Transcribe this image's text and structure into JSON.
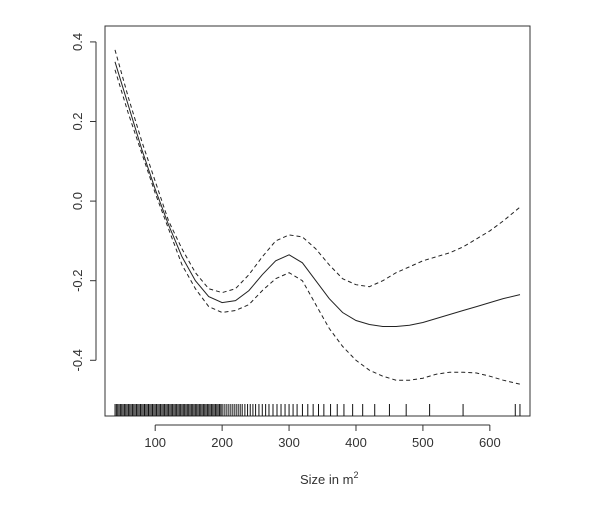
{
  "chart_data": {
    "type": "line",
    "xlabel": "Size in m",
    "xlabel_superscript": "2",
    "ylabel": "",
    "xlim": [
      25,
      660
    ],
    "ylim": [
      -0.54,
      0.44
    ],
    "x_ticks": [
      100,
      200,
      300,
      400,
      500,
      600
    ],
    "x_tick_labels": [
      "100",
      "200",
      "300",
      "400",
      "500",
      "600"
    ],
    "y_ticks": [
      -0.4,
      -0.2,
      0.0,
      0.2,
      0.4
    ],
    "y_tick_labels": [
      "-0.4",
      "-0.2",
      "0.0",
      "0.2",
      "0.4"
    ],
    "grid": false,
    "legend": "none",
    "series": [
      {
        "style": "solid",
        "x": [
          40,
          60,
          80,
          100,
          120,
          140,
          160,
          180,
          200,
          220,
          240,
          260,
          280,
          300,
          320,
          340,
          360,
          380,
          400,
          420,
          440,
          460,
          480,
          500,
          520,
          540,
          560,
          580,
          600,
          620,
          645
        ],
        "y": [
          0.35,
          0.24,
          0.13,
          0.03,
          -0.06,
          -0.14,
          -0.2,
          -0.24,
          -0.255,
          -0.25,
          -0.225,
          -0.185,
          -0.15,
          -0.135,
          -0.155,
          -0.2,
          -0.245,
          -0.28,
          -0.3,
          -0.31,
          -0.315,
          -0.315,
          -0.312,
          -0.305,
          -0.295,
          -0.285,
          -0.275,
          -0.265,
          -0.255,
          -0.245,
          -0.235
        ]
      },
      {
        "style": "dashed",
        "x": [
          40,
          60,
          80,
          100,
          120,
          140,
          160,
          180,
          200,
          220,
          240,
          260,
          280,
          300,
          320,
          340,
          360,
          380,
          400,
          420,
          440,
          460,
          480,
          500,
          520,
          540,
          560,
          580,
          600,
          620,
          645
        ],
        "y": [
          0.38,
          0.26,
          0.15,
          0.05,
          -0.05,
          -0.12,
          -0.18,
          -0.22,
          -0.23,
          -0.22,
          -0.185,
          -0.14,
          -0.1,
          -0.085,
          -0.09,
          -0.12,
          -0.16,
          -0.195,
          -0.21,
          -0.215,
          -0.2,
          -0.18,
          -0.165,
          -0.15,
          -0.14,
          -0.13,
          -0.115,
          -0.095,
          -0.075,
          -0.05,
          -0.015
        ]
      },
      {
        "style": "dashed",
        "x": [
          40,
          60,
          80,
          100,
          120,
          140,
          160,
          180,
          200,
          220,
          240,
          260,
          280,
          300,
          320,
          340,
          360,
          380,
          400,
          420,
          440,
          460,
          480,
          500,
          520,
          540,
          560,
          580,
          600,
          620,
          645
        ],
        "y": [
          0.33,
          0.22,
          0.12,
          0.02,
          -0.07,
          -0.16,
          -0.22,
          -0.265,
          -0.28,
          -0.275,
          -0.26,
          -0.225,
          -0.195,
          -0.18,
          -0.2,
          -0.26,
          -0.32,
          -0.365,
          -0.4,
          -0.425,
          -0.44,
          -0.45,
          -0.45,
          -0.445,
          -0.435,
          -0.43,
          -0.43,
          -0.432,
          -0.44,
          -0.45,
          -0.46
        ]
      }
    ],
    "rug_x": [
      40,
      42,
      44,
      46,
      48,
      50,
      52,
      54,
      56,
      58,
      60,
      62,
      64,
      66,
      68,
      70,
      72,
      74,
      76,
      78,
      80,
      82,
      84,
      86,
      88,
      90,
      92,
      94,
      96,
      98,
      100,
      102,
      104,
      106,
      108,
      110,
      112,
      114,
      116,
      118,
      120,
      122,
      124,
      126,
      128,
      130,
      132,
      134,
      136,
      138,
      140,
      142,
      144,
      146,
      148,
      150,
      152,
      154,
      156,
      158,
      160,
      162,
      164,
      166,
      168,
      170,
      172,
      174,
      176,
      178,
      180,
      182,
      184,
      186,
      188,
      190,
      192,
      194,
      196,
      198,
      200,
      203,
      206,
      209,
      212,
      215,
      218,
      221,
      224,
      227,
      230,
      234,
      238,
      242,
      246,
      250,
      255,
      260,
      265,
      270,
      276,
      282,
      288,
      294,
      300,
      306,
      312,
      320,
      328,
      336,
      344,
      352,
      362,
      372,
      382,
      395,
      410,
      428,
      450,
      475,
      510,
      560,
      638,
      645
    ]
  }
}
